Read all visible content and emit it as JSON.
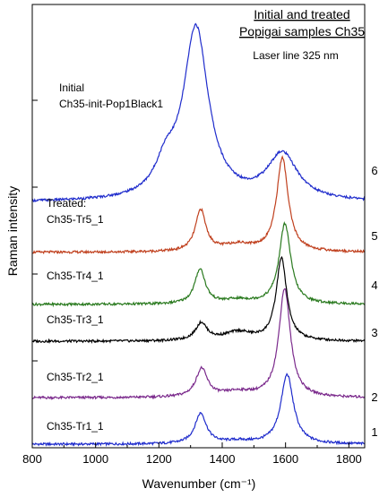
{
  "chart_data": {
    "type": "line",
    "title": [
      "Initial and treated",
      "Popigai samples Ch35"
    ],
    "subtitle": "Laser line 325 nm",
    "xlabel": "Wavenumber (cm⁻¹)",
    "ylabel": "Raman intensity",
    "xlim": [
      800,
      1850
    ],
    "x_ticks": [
      800,
      1000,
      1200,
      1400,
      1600,
      1800
    ],
    "grid": false,
    "series": [
      {
        "name": "Ch35-Tr1_1",
        "number": "1",
        "color": "#1f2ccc",
        "label_lines": [
          "Ch35-Tr1_1"
        ],
        "baseline": 0.8,
        "peaks": [
          {
            "center": 1332,
            "height": 7.0,
            "width": 22
          },
          {
            "center": 1450,
            "height": 0.6,
            "width": 55
          },
          {
            "center": 1605,
            "height": 16.0,
            "width": 24
          }
        ]
      },
      {
        "name": "Ch35-Tr2_1",
        "number": "2",
        "color": "#7b2a8c",
        "label_lines": [
          "Ch35-Tr2_1"
        ],
        "baseline": 11.5,
        "peaks": [
          {
            "center": 1335,
            "height": 6.5,
            "width": 22
          },
          {
            "center": 1450,
            "height": 1.2,
            "width": 60
          },
          {
            "center": 1597,
            "height": 25.0,
            "width": 22
          }
        ]
      },
      {
        "name": "Ch35-Tr3_1",
        "number": "3",
        "color": "#000000",
        "label_lines": [
          "Ch35-Tr3_1"
        ],
        "baseline": 24.5,
        "peaks": [
          {
            "center": 1334,
            "height": 4.0,
            "width": 22
          },
          {
            "center": 1450,
            "height": 2.0,
            "width": 55
          },
          {
            "center": 1587,
            "height": 19.0,
            "width": 20
          }
        ]
      },
      {
        "name": "Ch35-Tr4_1",
        "number": "4",
        "color": "#2a7a1f",
        "label_lines": [
          "Ch35-Tr4_1"
        ],
        "baseline": 33.0,
        "peaks": [
          {
            "center": 1330,
            "height": 8.0,
            "width": 20
          },
          {
            "center": 1450,
            "height": 0.9,
            "width": 55
          },
          {
            "center": 1598,
            "height": 18.5,
            "width": 22
          }
        ]
      },
      {
        "name": "Ch35-Tr5_1",
        "number": "5",
        "color": "#c0401e",
        "label_lines": [
          "Treated:",
          "Ch35-Tr5_1"
        ],
        "baseline": 45.0,
        "peaks": [
          {
            "center": 1332,
            "height": 9.5,
            "width": 20
          },
          {
            "center": 1450,
            "height": 1.6,
            "width": 60
          },
          {
            "center": 1590,
            "height": 21.5,
            "width": 22
          }
        ]
      },
      {
        "name": "Ch35-init-Pop1Black1",
        "number": "6",
        "color": "#1f2ccc",
        "label_lines": [
          "Initial",
          "Ch35-init-Pop1Black1"
        ],
        "baseline": 56.5,
        "peaks": [
          {
            "center": 1317,
            "height": 39.5,
            "width": 48
          },
          {
            "center": 1222,
            "height": 6.5,
            "width": 40
          },
          {
            "center": 1590,
            "height": 10.5,
            "width": 58
          }
        ]
      }
    ]
  }
}
